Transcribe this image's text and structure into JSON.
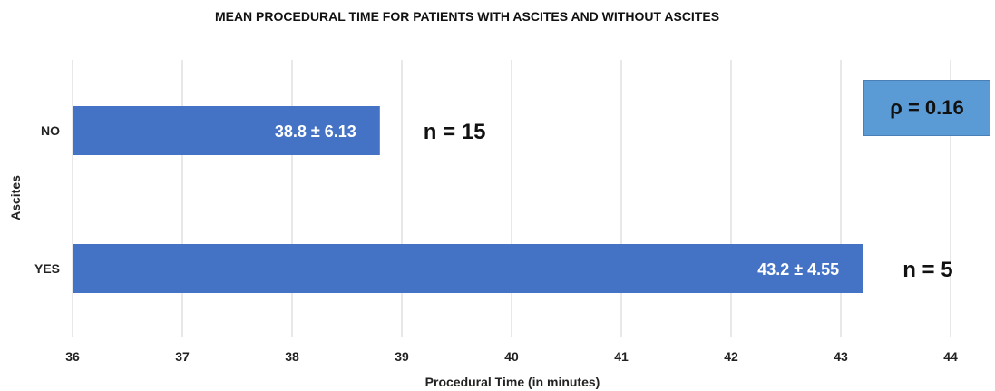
{
  "chart_data": {
    "type": "bar",
    "orientation": "horizontal",
    "title": "MEAN PROCEDURAL TIME FOR PATIENTS WITH ASCITES AND WITHOUT ASCITES",
    "xlabel": "Procedural Time (in minutes)",
    "ylabel": "Ascites",
    "xlim": [
      36,
      44
    ],
    "xticks": [
      36,
      37,
      38,
      39,
      40,
      41,
      42,
      43,
      44
    ],
    "grid": true,
    "categories": [
      "NO",
      "YES"
    ],
    "values": [
      38.8,
      43.2
    ],
    "data_labels": [
      "38.8 ± 6.13",
      "43.2 ± 4.55"
    ],
    "n_labels": [
      "n = 15",
      "n = 5"
    ],
    "bar_color": "#4472c4",
    "annotation": "ρ =  0.16",
    "annotation_color": "#5b9bd5"
  }
}
